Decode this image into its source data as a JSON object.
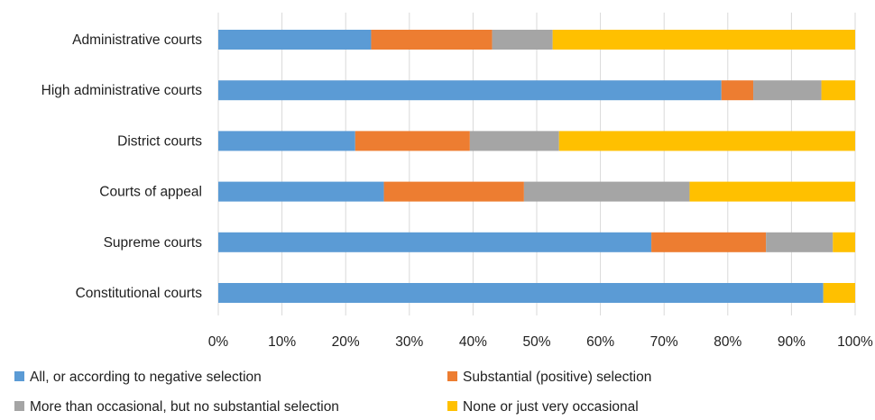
{
  "chart_data": {
    "type": "bar",
    "orientation": "horizontal",
    "stacked": "percent",
    "categories": [
      "Administrative courts",
      "High administrative courts",
      "District courts",
      "Courts of appeal",
      "Supreme courts",
      "Constitutional courts"
    ],
    "series": [
      {
        "name": "All, or according to negative selection",
        "color": "#5b9bd5",
        "values": [
          24,
          79,
          21.5,
          26,
          68,
          95
        ]
      },
      {
        "name": "Substantial (positive) selection",
        "color": "#ed7d31",
        "values": [
          19,
          5,
          18,
          22,
          18,
          0
        ]
      },
      {
        "name": "More than occasional, but no substantial selection",
        "color": "#a5a5a5",
        "values": [
          9.5,
          10.7,
          14,
          26,
          10.5,
          0
        ]
      },
      {
        "name": "None or just very occasional",
        "color": "#ffc000",
        "values": [
          47.5,
          5.3,
          46.5,
          26,
          3.5,
          5
        ]
      }
    ],
    "x_ticks": [
      "0%",
      "10%",
      "20%",
      "30%",
      "40%",
      "50%",
      "60%",
      "70%",
      "80%",
      "90%",
      "100%"
    ],
    "xlim": [
      0,
      100
    ],
    "grid": true,
    "legend_position": "bottom",
    "title": "",
    "xlabel": "",
    "ylabel": ""
  }
}
